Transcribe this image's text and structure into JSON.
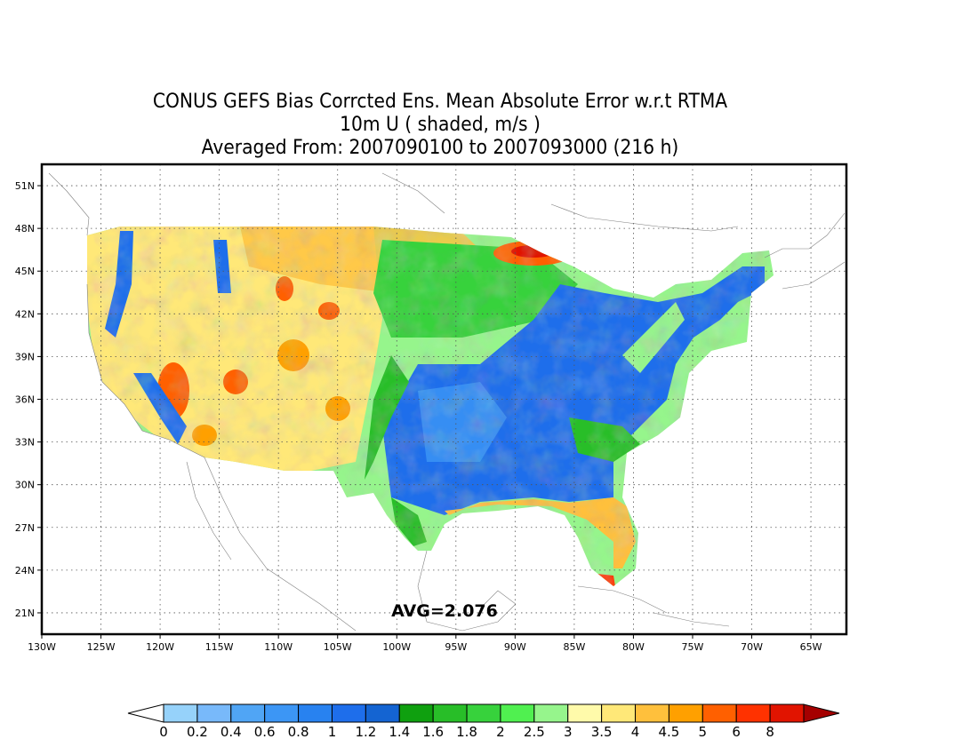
{
  "title": {
    "line1": "CONUS GEFS Bias Corrcted Ens. Mean Absolute Error w.r.t RTMA",
    "line2": "10m U ( shaded, m/s )",
    "line3": "Averaged From: 2007090100 to 2007093000 (216 h)"
  },
  "map": {
    "lon_range": [
      -130,
      -62
    ],
    "lat_range": [
      19.5,
      52.5
    ],
    "lon_ticks": [
      {
        "lon": -130,
        "label": "130W"
      },
      {
        "lon": -125,
        "label": "125W"
      },
      {
        "lon": -120,
        "label": "120W"
      },
      {
        "lon": -115,
        "label": "115W"
      },
      {
        "lon": -110,
        "label": "110W"
      },
      {
        "lon": -105,
        "label": "105W"
      },
      {
        "lon": -100,
        "label": "100W"
      },
      {
        "lon": -95,
        "label": "95W"
      },
      {
        "lon": -90,
        "label": "90W"
      },
      {
        "lon": -85,
        "label": "85W"
      },
      {
        "lon": -80,
        "label": "80W"
      },
      {
        "lon": -75,
        "label": "75W"
      },
      {
        "lon": -70,
        "label": "70W"
      },
      {
        "lon": -65,
        "label": "65W"
      }
    ],
    "lat_ticks": [
      {
        "lat": 51,
        "label": "51N"
      },
      {
        "lat": 48,
        "label": "48N"
      },
      {
        "lat": 45,
        "label": "45N"
      },
      {
        "lat": 42,
        "label": "42N"
      },
      {
        "lat": 39,
        "label": "39N"
      },
      {
        "lat": 36,
        "label": "36N"
      },
      {
        "lat": 33,
        "label": "33N"
      },
      {
        "lat": 30,
        "label": "30N"
      },
      {
        "lat": 27,
        "label": "27N"
      },
      {
        "lat": 24,
        "label": "24N"
      },
      {
        "lat": 21,
        "label": "21N"
      }
    ],
    "grid": "dotted",
    "avg_label": "AVG=2.076"
  },
  "colorbar": {
    "under_color": "#ffffff",
    "over_color": "#a50000",
    "bins": [
      {
        "color": "#96d2fa"
      },
      {
        "color": "#78b9fa"
      },
      {
        "color": "#50a5f5"
      },
      {
        "color": "#3c96f5"
      },
      {
        "color": "#2882f0"
      },
      {
        "color": "#1e6eeb"
      },
      {
        "color": "#1464d2"
      },
      {
        "color": "#0fa00f"
      },
      {
        "color": "#28be28"
      },
      {
        "color": "#37d23c"
      },
      {
        "color": "#50f050"
      },
      {
        "color": "#96f58c"
      },
      {
        "color": "#fffaaa"
      },
      {
        "color": "#ffe878"
      },
      {
        "color": "#ffc03c"
      },
      {
        "color": "#ffa000"
      },
      {
        "color": "#ff6000"
      },
      {
        "color": "#ff3200"
      },
      {
        "color": "#e11400"
      }
    ],
    "labels": [
      "0",
      "0.2",
      "0.4",
      "0.6",
      "0.8",
      "1",
      "1.2",
      "1.4",
      "1.6",
      "1.8",
      "2",
      "2.5",
      "3",
      "3.5",
      "4",
      "4.5",
      "5",
      "6",
      "8"
    ]
  }
}
